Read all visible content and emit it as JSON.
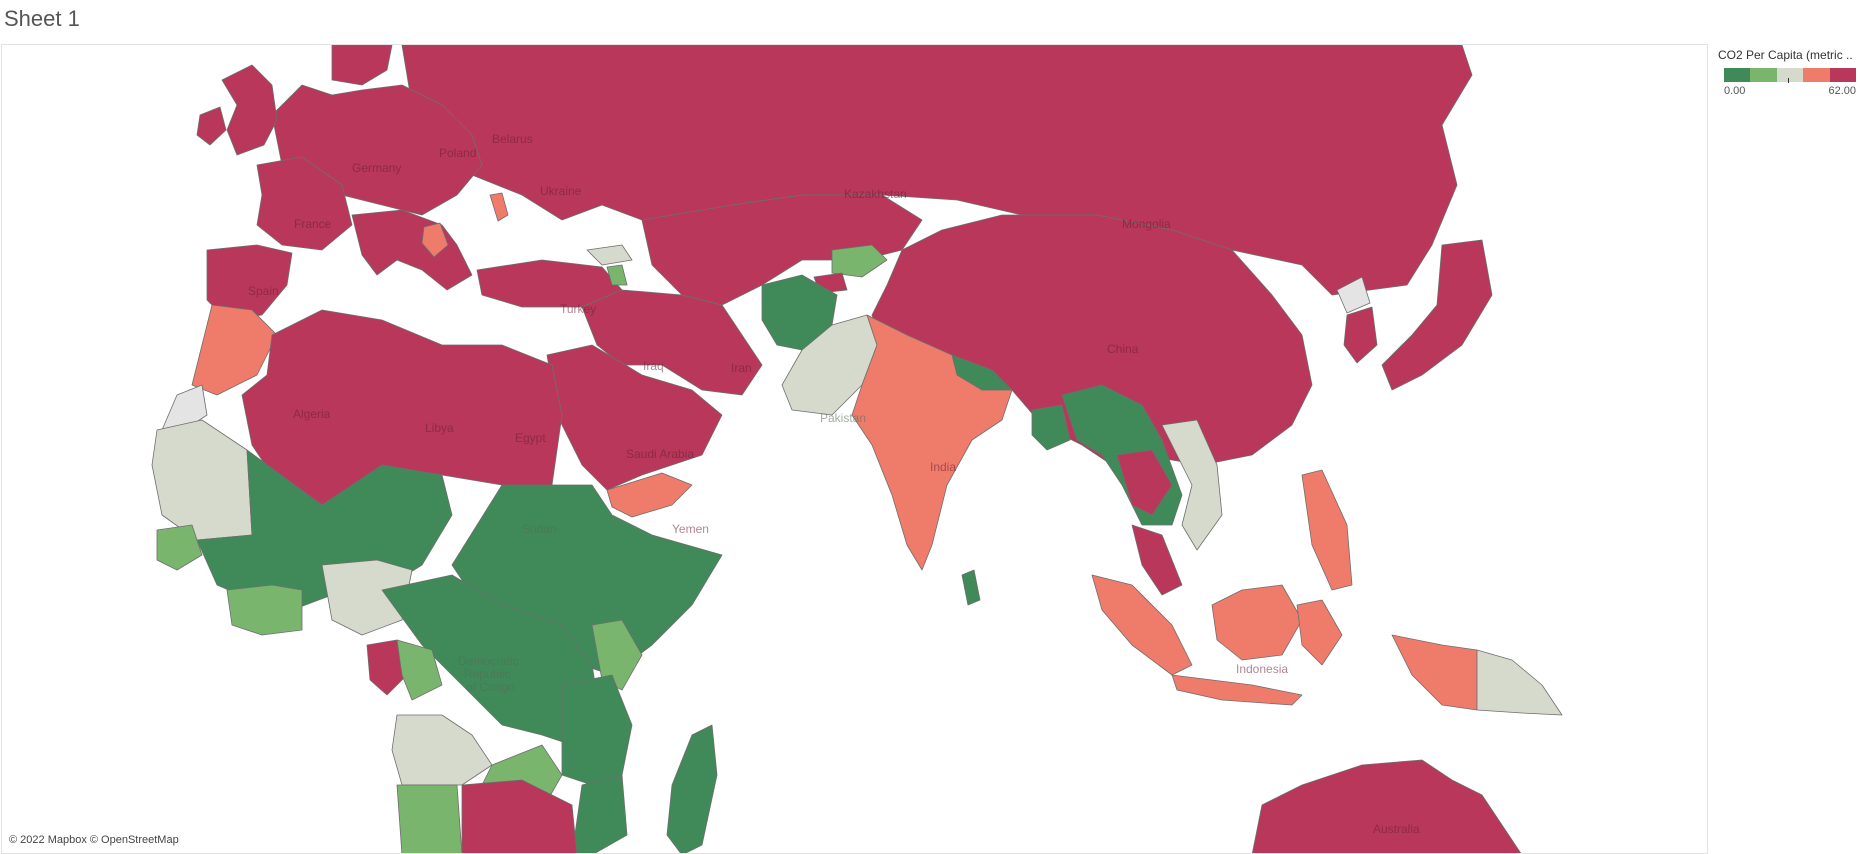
{
  "sheet": {
    "title": "Sheet 1"
  },
  "map": {
    "attribution": "© 2022 Mapbox © OpenStreetMap",
    "fill_colors": {
      "very_high": "#b9375a",
      "high": "#ef7b6a",
      "mid": "#d5dacc",
      "low": "#7ab56e",
      "very_low": "#3f8a58",
      "no_data": "#e4e4e4"
    },
    "labels": {
      "belarus": "Belarus",
      "poland": "Poland",
      "germany": "Germany",
      "ukraine": "Ukraine",
      "france": "France",
      "spain": "Spain",
      "turkey": "Turkey",
      "kazakhstan": "Kazakhstan",
      "mongolia": "Mongolia",
      "china": "China",
      "iraq": "Iraq",
      "iran": "Iran",
      "algeria": "Algeria",
      "libya": "Libya",
      "egypt": "Egypt",
      "saudi_arabia": "Saudi Arabia",
      "pakistan": "Pakistan",
      "india": "India",
      "yemen": "Yemen",
      "sudan": "Sudan",
      "drc_line1": "Democratic",
      "drc_line2": "Republic",
      "drc_line3": "of Congo",
      "indonesia": "Indonesia",
      "australia": "Australia"
    }
  },
  "legend": {
    "title": "CO2 Per Capita (metric ..",
    "min_label": "0.00",
    "max_label": "62.00",
    "colors": [
      "#3f8a58",
      "#7ab56e",
      "#d5dacc",
      "#ef7b6a",
      "#b9375a"
    ]
  }
}
